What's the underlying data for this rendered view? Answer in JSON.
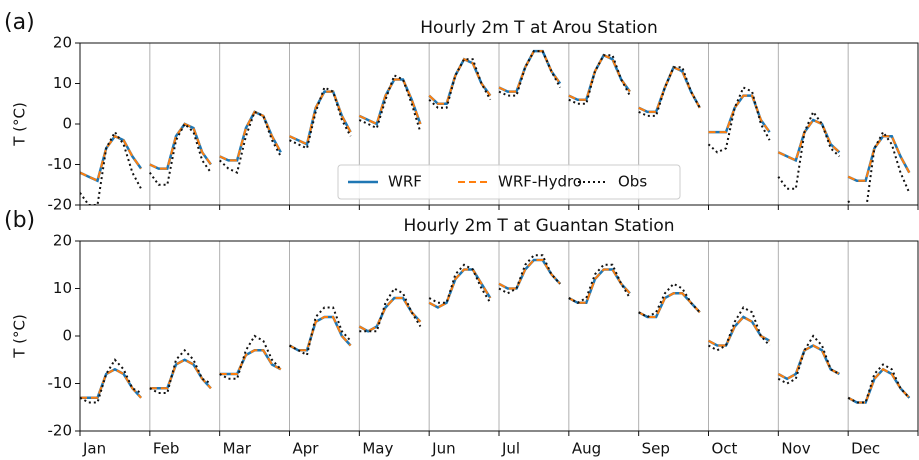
{
  "chart_data": [
    {
      "type": "line",
      "panel_label": "(a)",
      "title": "Hourly 2m T at Arou Station",
      "ylabel": "T (°C)",
      "x": [
        0,
        3,
        6,
        9,
        12,
        15,
        18,
        21
      ],
      "xlim": [
        0,
        24
      ],
      "ylim": [
        -20,
        20
      ],
      "yticks": [
        -20,
        -10,
        0,
        10,
        20
      ],
      "grid": true,
      "legend": "lower center",
      "series": [
        {
          "name": "WRF",
          "color": "#1f77b4",
          "style": "solid",
          "values": [
            [
              -12,
              -13,
              -14,
              -6,
              -3,
              -4,
              -8,
              -11
            ],
            [
              -10,
              -11,
              -11,
              -3,
              0,
              -1,
              -7,
              -10
            ],
            [
              -8,
              -9,
              -9,
              -1,
              3,
              2,
              -3,
              -7
            ],
            [
              -3,
              -4,
              -5,
              4,
              8,
              8,
              2,
              -2
            ],
            [
              2,
              1,
              0,
              7,
              11,
              11,
              6,
              0
            ],
            [
              7,
              5,
              5,
              12,
              16,
              15,
              10,
              7
            ],
            [
              9,
              8,
              8,
              14,
              18,
              18,
              13,
              10
            ],
            [
              7,
              6,
              6,
              13,
              17,
              16,
              11,
              8
            ],
            [
              4,
              3,
              3,
              9,
              14,
              13,
              8,
              4
            ],
            [
              -2,
              -2,
              -2,
              4,
              7,
              7,
              1,
              -2
            ],
            [
              -7,
              -8,
              -9,
              -2,
              1,
              0,
              -5,
              -7
            ],
            [
              -13,
              -14,
              -14,
              -6,
              -3,
              -3,
              -8,
              -12
            ]
          ]
        },
        {
          "name": "WRF-Hydro",
          "color": "#ff7f0e",
          "style": "dashed",
          "values": [
            [
              -12,
              -13,
              -14,
              -6,
              -3,
              -4,
              -8,
              -11
            ],
            [
              -10,
              -11,
              -11,
              -3,
              0,
              -1,
              -7,
              -10
            ],
            [
              -8,
              -9,
              -9,
              -1,
              3,
              2,
              -3,
              -7
            ],
            [
              -3,
              -4,
              -5,
              4,
              8,
              8,
              2,
              -2
            ],
            [
              2,
              1,
              0,
              7,
              11,
              11,
              6,
              0
            ],
            [
              7,
              5,
              5,
              12,
              16,
              15,
              10,
              7
            ],
            [
              9,
              8,
              8,
              14,
              18,
              18,
              13,
              10
            ],
            [
              7,
              6,
              6,
              13,
              17,
              16,
              11,
              8
            ],
            [
              4,
              3,
              3,
              9,
              14,
              13,
              8,
              4
            ],
            [
              -2,
              -2,
              -2,
              4,
              7,
              7,
              1,
              -2
            ],
            [
              -7,
              -8,
              -9,
              -2,
              1,
              0,
              -5,
              -7
            ],
            [
              -13,
              -14,
              -14,
              -6,
              -3,
              -3,
              -8,
              -12
            ]
          ]
        },
        {
          "name": "Obs",
          "color": "#111111",
          "style": "dotted",
          "values": [
            [
              -17,
              -20,
              -20,
              -6,
              -2,
              -5,
              -12,
              -16
            ],
            [
              -12,
              -15,
              -15,
              -4,
              0,
              -2,
              -9,
              -12
            ],
            [
              -9,
              -11,
              -12,
              -3,
              3,
              2,
              -4,
              -8
            ],
            [
              -4,
              -5,
              -6,
              3,
              9,
              8,
              1,
              -3
            ],
            [
              1,
              0,
              -1,
              6,
              12,
              11,
              5,
              -2
            ],
            [
              6,
              4,
              4,
              12,
              16,
              16,
              10,
              6
            ],
            [
              8,
              7,
              7,
              14,
              18,
              18,
              13,
              9
            ],
            [
              6,
              5,
              5,
              13,
              17,
              17,
              11,
              7
            ],
            [
              3,
              2,
              2,
              9,
              14,
              14,
              8,
              4
            ],
            [
              -5,
              -7,
              -6,
              4,
              9,
              8,
              0,
              -4
            ],
            [
              -13,
              -16,
              -16,
              -2,
              3,
              0,
              -6,
              -8
            ],
            [
              -19,
              -22,
              -22,
              -6,
              -2,
              -5,
              -12,
              -17
            ]
          ]
        }
      ]
    },
    {
      "type": "line",
      "panel_label": "(b)",
      "title": "Hourly 2m T at Guantan Station",
      "ylabel": "T (°C)",
      "categories": [
        "Jan",
        "Feb",
        "Mar",
        "Apr",
        "May",
        "Jun",
        "Jul",
        "Aug",
        "Sep",
        "Oct",
        "Nov",
        "Dec"
      ],
      "x": [
        0,
        3,
        6,
        9,
        12,
        15,
        18,
        21
      ],
      "xlim": [
        0,
        24
      ],
      "ylim": [
        -20,
        20
      ],
      "yticks": [
        -20,
        -10,
        0,
        10,
        20
      ],
      "grid": true,
      "series": [
        {
          "name": "WRF",
          "color": "#1f77b4",
          "style": "solid",
          "values": [
            [
              -13,
              -13,
              -13,
              -8,
              -7,
              -8,
              -11,
              -13
            ],
            [
              -11,
              -11,
              -11,
              -6,
              -5,
              -6,
              -9,
              -11
            ],
            [
              -8,
              -8,
              -8,
              -4,
              -3,
              -3,
              -6,
              -7
            ],
            [
              -2,
              -3,
              -3,
              3,
              4,
              4,
              0,
              -2
            ],
            [
              2,
              1,
              2,
              6,
              8,
              8,
              5,
              3
            ],
            [
              7,
              6,
              7,
              12,
              14,
              14,
              11,
              8
            ],
            [
              11,
              10,
              10,
              14,
              16,
              16,
              13,
              11
            ],
            [
              8,
              7,
              7,
              12,
              14,
              14,
              11,
              9
            ],
            [
              5,
              4,
              4,
              8,
              9,
              9,
              7,
              5
            ],
            [
              -1,
              -2,
              -2,
              2,
              4,
              3,
              0,
              -1
            ],
            [
              -8,
              -9,
              -8,
              -3,
              -2,
              -3,
              -7,
              -8
            ],
            [
              -13,
              -14,
              -14,
              -9,
              -7,
              -8,
              -11,
              -13
            ]
          ]
        },
        {
          "name": "WRF-Hydro",
          "color": "#ff7f0e",
          "style": "dashed",
          "values": [
            [
              -13,
              -13,
              -13,
              -8,
              -7,
              -8,
              -11,
              -13
            ],
            [
              -11,
              -11,
              -11,
              -6,
              -5,
              -6,
              -9,
              -11
            ],
            [
              -8,
              -8,
              -8,
              -4,
              -3,
              -3,
              -6,
              -7
            ],
            [
              -2,
              -3,
              -3,
              3,
              4,
              4,
              0,
              -2
            ],
            [
              2,
              1,
              2,
              6,
              8,
              8,
              5,
              3
            ],
            [
              7,
              6,
              7,
              12,
              14,
              14,
              11,
              8
            ],
            [
              11,
              10,
              10,
              14,
              16,
              16,
              13,
              11
            ],
            [
              8,
              7,
              7,
              12,
              14,
              14,
              11,
              9
            ],
            [
              5,
              4,
              4,
              8,
              9,
              9,
              7,
              5
            ],
            [
              -1,
              -2,
              -2,
              2,
              4,
              3,
              0,
              -1
            ],
            [
              -8,
              -9,
              -8,
              -3,
              -2,
              -3,
              -7,
              -8
            ],
            [
              -13,
              -14,
              -14,
              -9,
              -7,
              -8,
              -11,
              -13
            ]
          ]
        },
        {
          "name": "Obs",
          "color": "#111111",
          "style": "dotted",
          "values": [
            [
              -13,
              -14,
              -14,
              -8,
              -5,
              -7,
              -11,
              -12
            ],
            [
              -11,
              -12,
              -12,
              -5,
              -3,
              -5,
              -9,
              -10
            ],
            [
              -8,
              -9,
              -9,
              -3,
              0,
              -1,
              -5,
              -7
            ],
            [
              -2,
              -3,
              -4,
              4,
              6,
              6,
              1,
              -1
            ],
            [
              1,
              1,
              1,
              7,
              10,
              9,
              5,
              2
            ],
            [
              8,
              7,
              7,
              13,
              15,
              14,
              10,
              7
            ],
            [
              10,
              9,
              10,
              15,
              17,
              17,
              13,
              11
            ],
            [
              8,
              7,
              8,
              13,
              15,
              15,
              11,
              8
            ],
            [
              5,
              4,
              5,
              9,
              11,
              10,
              7,
              5
            ],
            [
              -2,
              -3,
              -2,
              3,
              6,
              5,
              0,
              -2
            ],
            [
              -9,
              -10,
              -9,
              -3,
              0,
              -2,
              -7,
              -8
            ],
            [
              -13,
              -14,
              -14,
              -8,
              -6,
              -7,
              -11,
              -13
            ]
          ]
        }
      ]
    }
  ]
}
